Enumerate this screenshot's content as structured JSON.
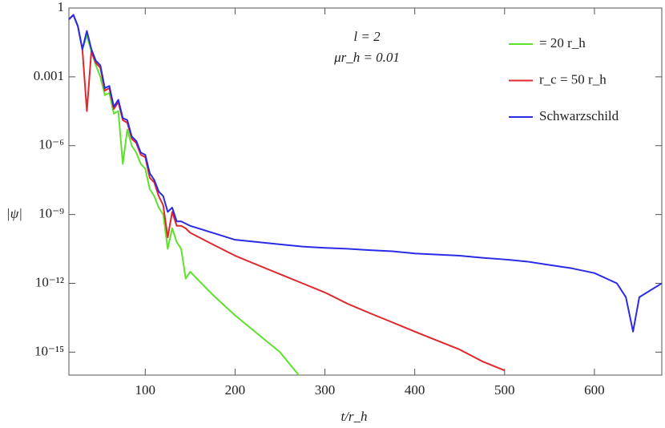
{
  "chart_data": {
    "type": "line",
    "annotations": [
      "l = 2",
      "μr_h = 0.01"
    ],
    "x_label": "t/r_h",
    "y_label": "|ψ|",
    "y_scale": "log",
    "xlim": [
      15,
      675
    ],
    "ylim": [
      1e-16,
      1
    ],
    "xticks": [
      100,
      200,
      300,
      400,
      500,
      600
    ],
    "yticks": [
      1,
      0.001,
      {
        "value": 1e-06,
        "label": "10⁻⁶"
      },
      {
        "value": 1e-09,
        "label": "10⁻⁹"
      },
      {
        "value": 1e-12,
        "label": "10⁻¹²"
      },
      {
        "value": 1e-15,
        "label": "10⁻¹⁵"
      }
    ],
    "legend": "top-right",
    "x": [
      15,
      20,
      25,
      30,
      35,
      40,
      45,
      50,
      55,
      60,
      65,
      70,
      75,
      80,
      85,
      90,
      95,
      100,
      105,
      110,
      115,
      120,
      125,
      130,
      135,
      140,
      145,
      150,
      175,
      200,
      225,
      250,
      275,
      300,
      325,
      350,
      375,
      400,
      425,
      450,
      475,
      500,
      525,
      550,
      575,
      600,
      625,
      635,
      643,
      650,
      675
    ],
    "series": [
      {
        "name": "= 20 r_h",
        "color": "#5ee02c",
        "values": [
          0.32,
          0.5,
          0.16,
          0.016,
          0.063,
          0.013,
          0.0032,
          0.001,
          0.00016,
          0.0002,
          2.5e-05,
          3.2e-05,
          1.6e-07,
          5e-06,
          1e-06,
          5e-07,
          1.6e-07,
          1e-07,
          1.3e-08,
          6.3e-09,
          2e-09,
          1e-09,
          3.2e-11,
          2.5e-10,
          6.3e-11,
          3.2e-11,
          1.6e-12,
          3.2e-12,
          3.2e-13,
          4e-14,
          6.3e-15,
          1e-15,
          6.3e-17,
          null,
          null,
          null,
          null,
          null,
          null,
          null,
          null,
          null,
          null,
          null,
          null,
          null,
          null,
          null,
          null,
          null,
          null
        ]
      },
      {
        "name": "r_c = 50 r_h",
        "color": "#e0282c",
        "values": [
          0.32,
          0.5,
          0.16,
          0.016,
          3.2e-05,
          0.013,
          0.004,
          0.0025,
          0.00025,
          0.00032,
          4e-05,
          7.9e-05,
          1.3e-05,
          1e-05,
          2e-06,
          1.3e-06,
          4e-07,
          3.2e-07,
          4e-08,
          2.5e-08,
          6.3e-09,
          2.5e-09,
          1e-10,
          1.3e-09,
          3.2e-10,
          3.2e-10,
          2.5e-10,
          1.6e-10,
          5e-11,
          1.6e-11,
          6.3e-12,
          2.5e-12,
          1e-12,
          4e-13,
          1.3e-13,
          5e-14,
          2e-14,
          7.9e-15,
          3.2e-15,
          1.3e-15,
          4e-16,
          1.6e-16,
          null,
          null,
          null,
          null,
          null,
          null,
          null,
          null,
          null
        ]
      },
      {
        "name": "Schwarzschild",
        "color": "#2b2be6",
        "values": [
          0.32,
          0.5,
          0.16,
          0.016,
          0.1,
          0.016,
          0.005,
          0.0032,
          0.00032,
          0.0004,
          5e-05,
          0.0001,
          1.6e-05,
          1.3e-05,
          2.5e-06,
          1.6e-06,
          5e-07,
          4e-07,
          6.3e-08,
          3.2e-08,
          1e-08,
          6.3e-09,
          1.3e-09,
          2e-09,
          5e-10,
          5e-10,
          4e-10,
          3.2e-10,
          1.6e-10,
          7.9e-11,
          6.3e-11,
          5e-11,
          4e-11,
          3.5e-11,
          3.2e-11,
          2.8e-11,
          2.5e-11,
          2e-11,
          1.8e-11,
          1.6e-11,
          1.3e-11,
          1.1e-11,
          8.9e-12,
          6.3e-12,
          4.5e-12,
          2.8e-12,
          1e-12,
          2.5e-13,
          7.9e-15,
          2.5e-13,
          1e-12
        ]
      }
    ]
  }
}
